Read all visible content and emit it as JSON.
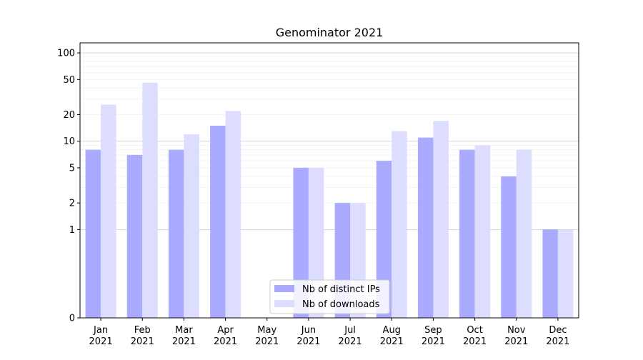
{
  "chart_data": {
    "type": "bar",
    "title": "Genominator 2021",
    "xlabel": "",
    "ylabel": "",
    "yscale": "symlog",
    "ylim": [
      0,
      130
    ],
    "grid": "horizontal",
    "legend_position": "bottom-center",
    "categories": [
      [
        "Jan",
        "2021"
      ],
      [
        "Feb",
        "2021"
      ],
      [
        "Mar",
        "2021"
      ],
      [
        "Apr",
        "2021"
      ],
      [
        "May",
        "2021"
      ],
      [
        "Jun",
        "2021"
      ],
      [
        "Jul",
        "2021"
      ],
      [
        "Aug",
        "2021"
      ],
      [
        "Sep",
        "2021"
      ],
      [
        "Oct",
        "2021"
      ],
      [
        "Nov",
        "2021"
      ],
      [
        "Dec",
        "2021"
      ]
    ],
    "yticks": [
      0,
      1,
      2,
      5,
      10,
      20,
      50,
      100
    ],
    "series": [
      {
        "name": "Nb of distinct IPs",
        "color": "#aaaaff",
        "values": [
          8,
          7,
          8,
          15,
          0,
          5,
          2,
          6,
          11,
          8,
          4,
          1
        ]
      },
      {
        "name": "Nb of downloads",
        "color": "#ddddff",
        "values": [
          26,
          46,
          12,
          22,
          0,
          5,
          2,
          13,
          17,
          9,
          8,
          1
        ]
      }
    ]
  }
}
